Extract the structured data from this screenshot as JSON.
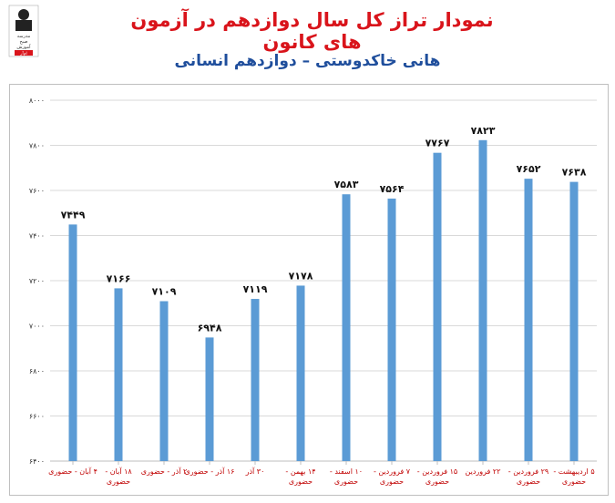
{
  "header": {
    "title": "نمودار تراز کل سال دوازدهم در آزمون های کانون",
    "subtitle": "هانی خاکدوستی – دوازدهم انسانی",
    "logo_text": [
      "مدرسه",
      "صبح",
      "آموزش"
    ],
    "logo_tag": "ام‌آر"
  },
  "chart_data": {
    "type": "bar",
    "ylim": [
      6400,
      8000
    ],
    "yticks": [
      "۸۰۰۰",
      "۷۸۰۰",
      "۷۶۰۰",
      "۷۴۰۰",
      "۷۲۰۰",
      "۷۰۰۰",
      "۶۸۰۰",
      "۶۶۰۰",
      "۶۴۰۰"
    ],
    "ytick_values": [
      8000,
      7800,
      7600,
      7400,
      7200,
      7000,
      6800,
      6600,
      6400
    ],
    "categories": [
      [
        "۴ آبان - حضوری"
      ],
      [
        "۱۸ آبان -",
        "حضوری"
      ],
      [
        "۲ آذر - حضوری"
      ],
      [
        "۱۶ آذر - حضوری"
      ],
      [
        "۳۰ آذر"
      ],
      [
        "۱۴ بهمن -",
        "حضوری"
      ],
      [
        "۱۰ اسفند -",
        "حضوری"
      ],
      [
        "۷ فروردین -",
        "حضوری"
      ],
      [
        "۱۵ فروردین -",
        "حضوری"
      ],
      [
        "۲۲ فروردین"
      ],
      [
        "۲۹ فروردین -",
        "حضوری"
      ],
      [
        "۵ اردیبهشت -",
        "حضوری"
      ]
    ],
    "values": [
      7449,
      7166,
      7109,
      6948,
      7119,
      7178,
      7583,
      7564,
      7767,
      7823,
      7652,
      7638
    ],
    "data_labels": [
      "۷۴۴۹",
      "۷۱۶۶",
      "۷۱۰۹",
      "۶۹۴۸",
      "۷۱۱۹",
      "۷۱۷۸",
      "۷۵۸۳",
      "۷۵۶۴",
      "۷۷۶۷",
      "۷۸۲۳",
      "۷۶۵۲",
      "۷۶۳۸"
    ],
    "colors": {
      "bar": "#5b9bd5",
      "grid": "#d9d9d9",
      "xlabel": "#c00000"
    },
    "grid": true
  }
}
